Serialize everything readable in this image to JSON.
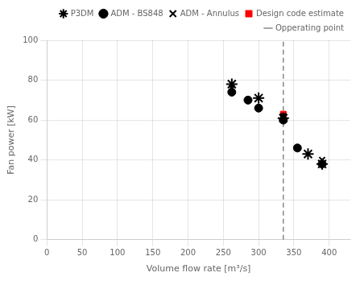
{
  "chart_data": {
    "type": "scatter",
    "xlabel": "Volume flow rate [m³/s]",
    "ylabel": "Fan power [kW]",
    "xlim": [
      0,
      430
    ],
    "ylim": [
      0,
      100
    ],
    "xticks": [
      0,
      50,
      100,
      150,
      200,
      250,
      300,
      350,
      400
    ],
    "yticks": [
      0,
      20,
      40,
      60,
      80,
      100
    ],
    "grid": true,
    "legend": "upper right",
    "series": [
      {
        "name": "Opperating point",
        "type": "vline",
        "x": [
          335
        ],
        "color": "#888888",
        "line_style": "dashed"
      },
      {
        "name": "P3DM",
        "x": [
          262,
          300,
          335,
          370,
          390
        ],
        "values": [
          78,
          71,
          61,
          43,
          38
        ],
        "color": "black",
        "marker": "star"
      },
      {
        "name": "ADM - BS848",
        "x": [
          262,
          285,
          300,
          335,
          355,
          390
        ],
        "values": [
          74,
          70,
          66,
          60,
          46,
          38
        ],
        "color": "black",
        "marker": "circle"
      },
      {
        "name": "ADM - Annulus",
        "x": [
          262,
          335,
          390
        ],
        "values": [
          76,
          62,
          40
        ],
        "color": "black",
        "marker": "cross"
      },
      {
        "name": "Design code estimate",
        "x": [
          335
        ],
        "values": [
          63
        ],
        "color": "red",
        "marker": "square"
      }
    ]
  }
}
